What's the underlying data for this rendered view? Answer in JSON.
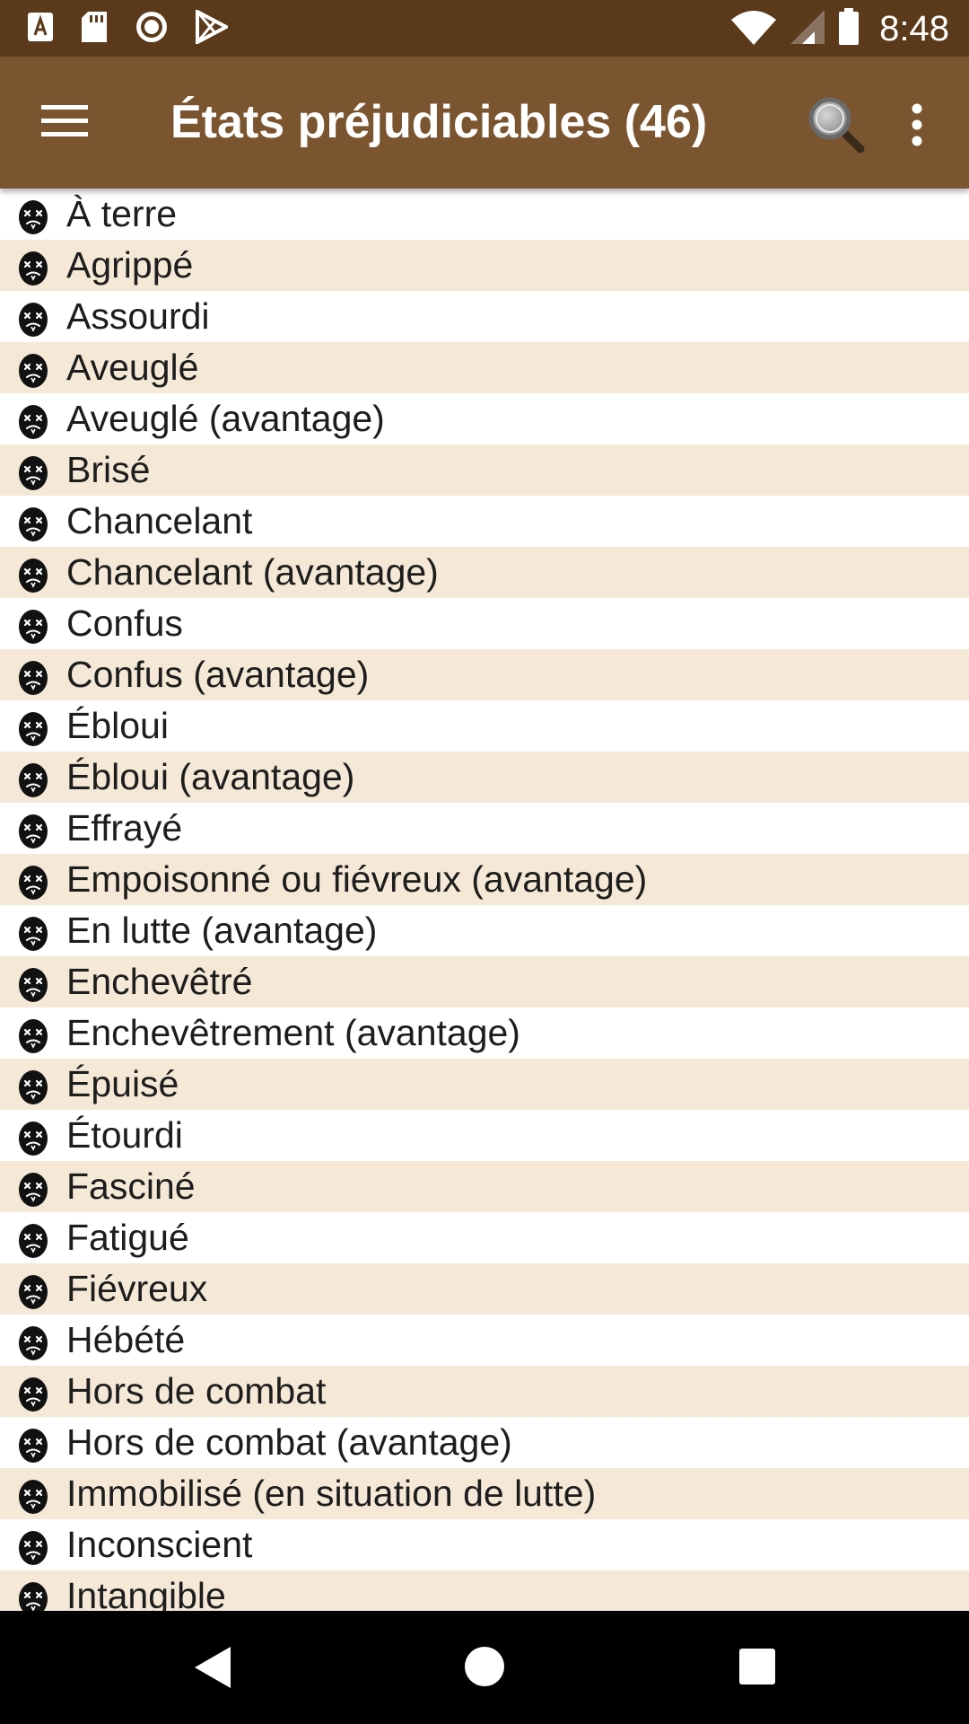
{
  "status_bar": {
    "time": "8:48",
    "left_icons": [
      "accessibility-icon",
      "sd-card-icon",
      "record-icon",
      "play-store-icon"
    ],
    "right_icons": [
      "wifi-icon",
      "cell-signal-icon",
      "battery-icon"
    ]
  },
  "app_bar": {
    "title": "États préjudiciables (46)",
    "background_color": "#7a5530",
    "menu_icon": "hamburger-menu-icon",
    "search_icon": "search-icon",
    "more_icon": "more-vert-icon"
  },
  "list": {
    "alternate_row_color": "#f5e8d7",
    "item_icon": "skull-face-icon",
    "items": [
      {
        "label": "À terre"
      },
      {
        "label": "Agrippé"
      },
      {
        "label": "Assourdi"
      },
      {
        "label": "Aveuglé"
      },
      {
        "label": "Aveuglé (avantage)"
      },
      {
        "label": "Brisé"
      },
      {
        "label": "Chancelant"
      },
      {
        "label": "Chancelant (avantage)"
      },
      {
        "label": "Confus"
      },
      {
        "label": "Confus (avantage)"
      },
      {
        "label": "Ébloui"
      },
      {
        "label": "Ébloui (avantage)"
      },
      {
        "label": "Effrayé"
      },
      {
        "label": "Empoisonné ou fiévreux (avantage)"
      },
      {
        "label": "En lutte (avantage)"
      },
      {
        "label": "Enchevêtré"
      },
      {
        "label": "Enchevêtrement (avantage)"
      },
      {
        "label": "Épuisé"
      },
      {
        "label": "Étourdi"
      },
      {
        "label": "Fasciné"
      },
      {
        "label": "Fatigué"
      },
      {
        "label": "Fiévreux"
      },
      {
        "label": "Hébété"
      },
      {
        "label": "Hors de combat"
      },
      {
        "label": "Hors de combat (avantage)"
      },
      {
        "label": "Immobilisé (en situation de lutte)"
      },
      {
        "label": "Inconscient"
      },
      {
        "label": "Intangible"
      }
    ]
  },
  "nav_bar": {
    "back_icon": "nav-back-icon",
    "home_icon": "nav-home-icon",
    "recents_icon": "nav-recents-icon"
  }
}
